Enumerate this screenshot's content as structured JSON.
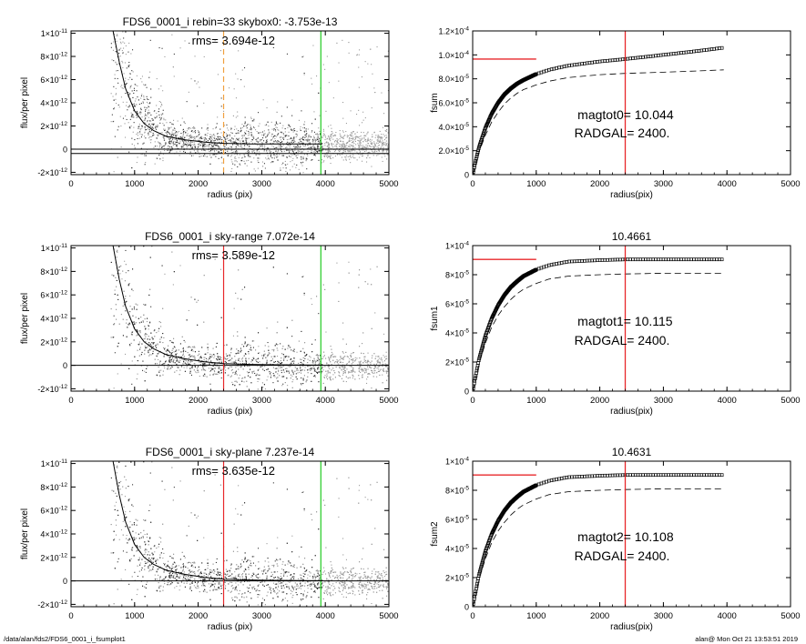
{
  "footer": {
    "left": "/data/alan/fds2/FDS6_0001_i_fsumplot1",
    "right": "alan@  Mon Oct 21 13:53:51 2019"
  },
  "colors": {
    "axes": "#000000",
    "points_dark": "#333333",
    "points_light": "#9a9a9a",
    "red": "#e8282b",
    "green": "#22cc22",
    "orange": "#f0a040"
  },
  "chart_data": [
    {
      "type": "scatter",
      "title": "FDS6_0001_i rebin=33    skybox0: -3.753e-13",
      "annotation": "rms= 3.694e-12",
      "xlabel": "radius (pix)",
      "ylabel": "flux/per pixel",
      "xlim": [
        0,
        5000
      ],
      "ylim": [
        -2.2e-12,
        1.02e-11
      ],
      "xticks": [
        "0",
        "1000",
        "2000",
        "3000",
        "4000",
        "5000"
      ],
      "yticks": [
        {
          "m": "-2",
          "e": "-12",
          "v": -2e-12
        },
        {
          "m": "0",
          "e": "",
          "v": 0
        },
        {
          "m": "2",
          "e": "-12",
          "v": 2e-12
        },
        {
          "m": "4",
          "e": "-12",
          "v": 4e-12
        },
        {
          "m": "6",
          "e": "-12",
          "v": 6e-12
        },
        {
          "m": "8",
          "e": "-12",
          "v": 8e-12
        },
        {
          "m": "1",
          "e": "-11",
          "v": 1e-11
        }
      ],
      "hlines": [
        0,
        -3.753e-13
      ],
      "vlines": [
        {
          "x": 2400,
          "color": "orange",
          "dashed": true
        },
        {
          "x": 3930,
          "color": "green",
          "dashed": false
        }
      ],
      "profile": {
        "x": [
          660,
          760,
          860,
          1000,
          1150,
          1300,
          1500,
          1800,
          2100,
          2400,
          2800,
          3200,
          3600,
          3950
        ],
        "y": [
          1.02e-11,
          7.5e-12,
          5.2e-12,
          3.3e-12,
          2.2e-12,
          1.6e-12,
          1.1e-12,
          8e-13,
          6e-13,
          5e-13,
          4.5e-13,
          4.5e-13,
          4.5e-13,
          4.5e-13
        ]
      },
      "scatter_extends_to": 5000
    },
    {
      "type": "line",
      "title": "",
      "xlabel": "radius(pix)",
      "ylabel": "fsum",
      "xlim": [
        0,
        5000
      ],
      "ylim": [
        0,
        0.00012
      ],
      "xticks": [
        "0",
        "1000",
        "2000",
        "3000",
        "4000",
        "5000"
      ],
      "yticks": [
        {
          "m": "0",
          "e": "",
          "v": 0
        },
        {
          "m": "2.0",
          "e": "-5",
          "v": 2e-05
        },
        {
          "m": "4.0",
          "e": "-5",
          "v": 4e-05
        },
        {
          "m": "6.0",
          "e": "-5",
          "v": 6e-05
        },
        {
          "m": "8.0",
          "e": "-5",
          "v": 8e-05
        },
        {
          "m": "1.0",
          "e": "-4",
          "v": 0.0001
        },
        {
          "m": "1.2",
          "e": "-4",
          "v": 0.00012
        }
      ],
      "series": [
        {
          "values_desc": "cumulative squares",
          "x": [
            0,
            50,
            100,
            200,
            300,
            400,
            500,
            600,
            700,
            800,
            1000,
            1200,
            1500,
            2000,
            2400,
            3000,
            3500,
            3950
          ],
          "y": [
            0,
            1.2e-05,
            2.3e-05,
            3.9e-05,
            5.1e-05,
            6e-05,
            6.7e-05,
            7.2e-05,
            7.6e-05,
            7.9e-05,
            8.4e-05,
            8.75e-05,
            9.1e-05,
            9.45e-05,
            9.65e-05,
            0.0001,
            0.000103,
            0.000106
          ]
        }
      ],
      "dashed": {
        "x": [
          0,
          50,
          100,
          200,
          300,
          400,
          500,
          600,
          700,
          800,
          1000,
          1200,
          1500,
          2000,
          2400,
          3000,
          3500,
          3950
        ],
        "y": [
          0,
          1e-05,
          1.9e-05,
          3.3e-05,
          4.4e-05,
          5.2e-05,
          5.9e-05,
          6.4e-05,
          6.8e-05,
          7.1e-05,
          7.5e-05,
          7.8e-05,
          8.1e-05,
          8.35e-05,
          8.45e-05,
          8.55e-05,
          8.65e-05,
          8.75e-05
        ]
      },
      "red_h": {
        "x0": 0,
        "x1": 1000,
        "y": 9.65e-05
      },
      "red_v": 2400,
      "text1": "magtot0=  10.044",
      "text2": "RADGAL=   2400."
    },
    {
      "type": "scatter",
      "title": "FDS6_0001_i sky-range  7.072e-14",
      "annotation": "rms= 3.589e-12",
      "xlabel": "radius (pix)",
      "ylabel": "flux/per pixel",
      "xlim": [
        0,
        5000
      ],
      "ylim": [
        -2.2e-12,
        1.02e-11
      ],
      "xticks": [
        "0",
        "1000",
        "2000",
        "3000",
        "4000",
        "5000"
      ],
      "yticks": [
        {
          "m": "-2",
          "e": "-12",
          "v": -2e-12
        },
        {
          "m": "0",
          "e": "",
          "v": 0
        },
        {
          "m": "2",
          "e": "-12",
          "v": 2e-12
        },
        {
          "m": "4",
          "e": "-12",
          "v": 4e-12
        },
        {
          "m": "6",
          "e": "-12",
          "v": 6e-12
        },
        {
          "m": "8",
          "e": "-12",
          "v": 8e-12
        },
        {
          "m": "1",
          "e": "-11",
          "v": 1e-11
        }
      ],
      "hlines": [
        0
      ],
      "vlines": [
        {
          "x": 2400,
          "color": "red",
          "dashed": false
        },
        {
          "x": 3930,
          "color": "green",
          "dashed": false
        }
      ],
      "profile": {
        "x": [
          660,
          760,
          860,
          1000,
          1150,
          1300,
          1500,
          1800,
          2100,
          2400,
          2800,
          3200,
          3600,
          3950
        ],
        "y": [
          1.02e-11,
          7.3e-12,
          5e-12,
          3.1e-12,
          2e-12,
          1.4e-12,
          9e-13,
          5.5e-13,
          3e-13,
          1.5e-13,
          8e-14,
          5e-14,
          3e-14,
          2e-14
        ]
      },
      "scatter_extends_to": 5000
    },
    {
      "type": "line",
      "title": "10.4661",
      "xlabel": "radius(pix)",
      "ylabel": "fsum1",
      "xlim": [
        0,
        5000
      ],
      "ylim": [
        0,
        0.0001
      ],
      "xticks": [
        "0",
        "1000",
        "2000",
        "3000",
        "4000",
        "5000"
      ],
      "yticks": [
        {
          "m": "0",
          "e": "",
          "v": 0
        },
        {
          "m": "2",
          "e": "-5",
          "v": 2e-05
        },
        {
          "m": "4",
          "e": "-5",
          "v": 4e-05
        },
        {
          "m": "6",
          "e": "-5",
          "v": 6e-05
        },
        {
          "m": "8",
          "e": "-5",
          "v": 8e-05
        },
        {
          "m": "1",
          "e": "-4",
          "v": 0.0001
        }
      ],
      "series": [
        {
          "values_desc": "cumulative squares",
          "x": [
            0,
            50,
            100,
            200,
            300,
            400,
            500,
            600,
            700,
            800,
            1000,
            1200,
            1500,
            2000,
            2400,
            3000,
            3500,
            3950
          ],
          "y": [
            0,
            1.1e-05,
            2.2e-05,
            3.8e-05,
            5e-05,
            5.9e-05,
            6.6e-05,
            7.15e-05,
            7.55e-05,
            7.9e-05,
            8.35e-05,
            8.65e-05,
            8.9e-05,
            9e-05,
            9.05e-05,
            9.05e-05,
            9.05e-05,
            9.05e-05
          ]
        }
      ],
      "dashed": {
        "x": [
          0,
          50,
          100,
          200,
          300,
          400,
          500,
          600,
          700,
          800,
          1000,
          1200,
          1500,
          2000,
          2400,
          3000,
          3500,
          3950
        ],
        "y": [
          0,
          9.5e-06,
          1.9e-05,
          3.3e-05,
          4.4e-05,
          5.2e-05,
          5.8e-05,
          6.3e-05,
          6.7e-05,
          7e-05,
          7.4e-05,
          7.7e-05,
          7.9e-05,
          8e-05,
          8.05e-05,
          8.1e-05,
          8.1e-05,
          8.1e-05
        ]
      },
      "red_h": {
        "x0": 0,
        "x1": 1000,
        "y": 9.05e-05
      },
      "red_v": 2400,
      "text1": "magtot1=  10.115",
      "text2": "RADGAL=   2400."
    },
    {
      "type": "scatter",
      "title": "FDS6_0001_i sky-plane  7.237e-14",
      "annotation": "rms= 3.635e-12",
      "xlabel": "radius (pix)",
      "ylabel": "flux/per pixel",
      "xlim": [
        0,
        5000
      ],
      "ylim": [
        -2.2e-12,
        1.02e-11
      ],
      "xticks": [
        "0",
        "1000",
        "2000",
        "3000",
        "4000",
        "5000"
      ],
      "yticks": [
        {
          "m": "-2",
          "e": "-12",
          "v": -2e-12
        },
        {
          "m": "0",
          "e": "",
          "v": 0
        },
        {
          "m": "2",
          "e": "-12",
          "v": 2e-12
        },
        {
          "m": "4",
          "e": "-12",
          "v": 4e-12
        },
        {
          "m": "6",
          "e": "-12",
          "v": 6e-12
        },
        {
          "m": "8",
          "e": "-12",
          "v": 8e-12
        },
        {
          "m": "1",
          "e": "-11",
          "v": 1e-11
        }
      ],
      "hlines": [
        0
      ],
      "vlines": [
        {
          "x": 2400,
          "color": "red",
          "dashed": false
        },
        {
          "x": 3930,
          "color": "green",
          "dashed": false
        }
      ],
      "profile": {
        "x": [
          660,
          760,
          860,
          1000,
          1150,
          1300,
          1500,
          1800,
          2100,
          2400,
          2800,
          3200,
          3600,
          3950
        ],
        "y": [
          1.02e-11,
          7.3e-12,
          5e-12,
          3.1e-12,
          2e-12,
          1.4e-12,
          9e-13,
          5.5e-13,
          3e-13,
          1.5e-13,
          8e-14,
          5e-14,
          3e-14,
          2e-14
        ]
      },
      "scatter_extends_to": 5000
    },
    {
      "type": "line",
      "title": "10.4631",
      "xlabel": "radius(pix)",
      "ylabel": "fsum2",
      "xlim": [
        0,
        5000
      ],
      "ylim": [
        0,
        0.0001
      ],
      "xticks": [
        "0",
        "1000",
        "2000",
        "3000",
        "4000",
        "5000"
      ],
      "yticks": [
        {
          "m": "0",
          "e": "",
          "v": 0
        },
        {
          "m": "2",
          "e": "-5",
          "v": 2e-05
        },
        {
          "m": "4",
          "e": "-5",
          "v": 4e-05
        },
        {
          "m": "6",
          "e": "-5",
          "v": 6e-05
        },
        {
          "m": "8",
          "e": "-5",
          "v": 8e-05
        },
        {
          "m": "1",
          "e": "-4",
          "v": 0.0001
        }
      ],
      "series": [
        {
          "values_desc": "cumulative squares",
          "x": [
            0,
            50,
            100,
            200,
            300,
            400,
            500,
            600,
            700,
            800,
            1000,
            1200,
            1500,
            2000,
            2400,
            3000,
            3500,
            3950
          ],
          "y": [
            0,
            1.1e-05,
            2.2e-05,
            3.8e-05,
            5e-05,
            5.9e-05,
            6.6e-05,
            7.15e-05,
            7.55e-05,
            7.9e-05,
            8.35e-05,
            8.65e-05,
            8.9e-05,
            9e-05,
            9.05e-05,
            9.05e-05,
            9.05e-05,
            9.05e-05
          ]
        }
      ],
      "dashed": {
        "x": [
          0,
          50,
          100,
          200,
          300,
          400,
          500,
          600,
          700,
          800,
          1000,
          1200,
          1500,
          2000,
          2400,
          3000,
          3500,
          3950
        ],
        "y": [
          0,
          9.5e-06,
          1.9e-05,
          3.3e-05,
          4.4e-05,
          5.2e-05,
          5.8e-05,
          6.3e-05,
          6.7e-05,
          7e-05,
          7.4e-05,
          7.7e-05,
          7.9e-05,
          8e-05,
          8.05e-05,
          8.1e-05,
          8.1e-05,
          8.1e-05
        ]
      },
      "red_h": {
        "x0": 0,
        "x1": 1000,
        "y": 9.05e-05
      },
      "red_v": 2400,
      "text1": "magtot2=  10.108",
      "text2": "RADGAL=   2400."
    }
  ]
}
